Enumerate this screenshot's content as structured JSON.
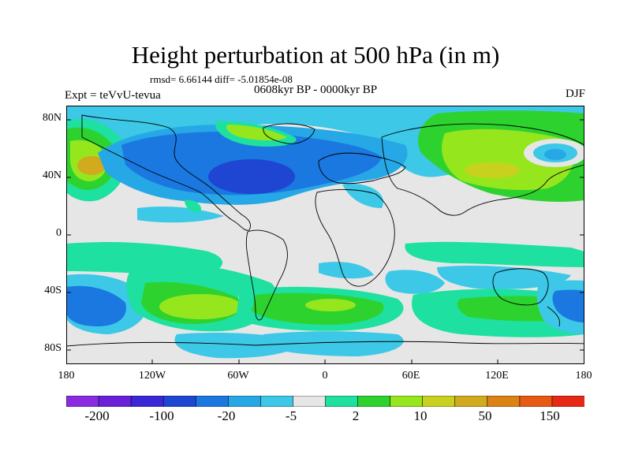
{
  "title": "Height perturbation at 500 hPa (in m)",
  "stats": "rmsd= 6.66144 diff= -5.01854e-08",
  "period": "0608kyr BP - 0000kyr BP",
  "experiment": "Expt = teVvU-tevua",
  "season": "DJF",
  "y_axis_labels": [
    "80N",
    "40N",
    "0",
    "40S",
    "80S"
  ],
  "x_axis_labels": [
    "180",
    "120W",
    "60W",
    "0",
    "60E",
    "120E",
    "180"
  ],
  "colorbar": {
    "labels": [
      "-200",
      "-100",
      "-20",
      "-5",
      "2",
      "10",
      "50",
      "150"
    ],
    "colors": [
      "#8a2be2",
      "#6a1fd8",
      "#3a28d6",
      "#1e46d2",
      "#1a78e0",
      "#26a8e6",
      "#3cc8e6",
      "#e6e6e6",
      "#1ee0a0",
      "#2ed22e",
      "#96e61e",
      "#c8d21e",
      "#d2aa1e",
      "#dc8214",
      "#e65a14",
      "#e62814"
    ]
  },
  "chart_data": {
    "type": "heatmap",
    "title": "Height perturbation at 500 hPa (in m)",
    "variable_unit": "m",
    "projection": "cylindrical equidistant",
    "lon_range": [
      -180,
      180
    ],
    "lat_range": [
      -90,
      90
    ],
    "contour_levels": [
      -200,
      -100,
      -20,
      -5,
      2,
      10,
      50,
      150
    ],
    "features": [
      {
        "region": "North America / North Atlantic",
        "sign": "negative",
        "approx_value": -20
      },
      {
        "region": "North Pacific (east of dateline)",
        "sign": "positive",
        "approx_value": 50
      },
      {
        "region": "Siberia / East Asia",
        "sign": "positive",
        "approx_value": 20
      },
      {
        "region": "Southern Pacific ~50S 180",
        "sign": "negative",
        "approx_value": -20
      },
      {
        "region": "South Pacific ~45S 120W",
        "sign": "positive",
        "approx_value": 20
      },
      {
        "region": "South Atlantic ~45S 0",
        "sign": "positive",
        "approx_value": 20
      }
    ]
  }
}
